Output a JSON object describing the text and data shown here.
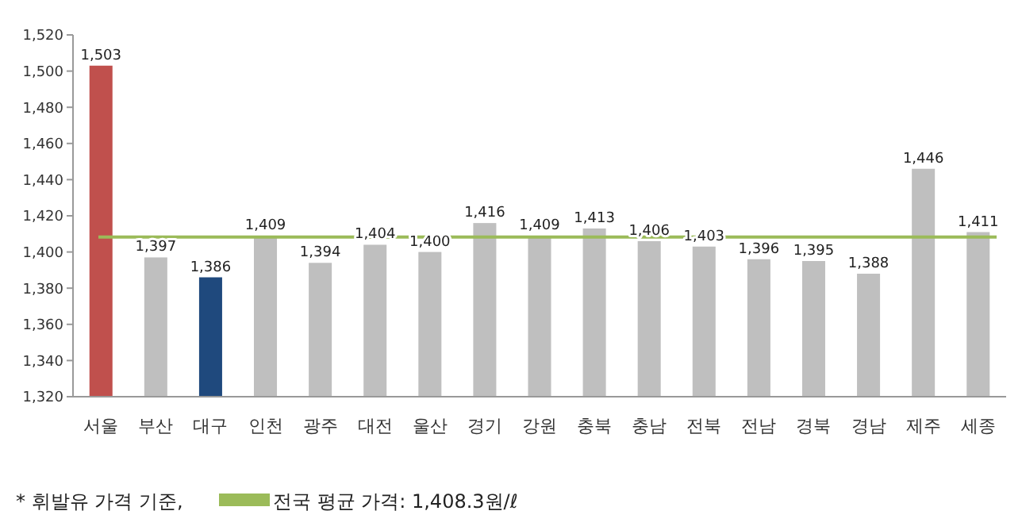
{
  "chart_data": {
    "type": "bar",
    "categories": [
      "서울",
      "부산",
      "대구",
      "인천",
      "광주",
      "대전",
      "울산",
      "경기",
      "강원",
      "충북",
      "충남",
      "전북",
      "전남",
      "경북",
      "경남",
      "제주",
      "세종"
    ],
    "values": [
      1503,
      1397,
      1386,
      1409,
      1394,
      1404,
      1400,
      1416,
      1409,
      1413,
      1406,
      1403,
      1396,
      1395,
      1388,
      1446,
      1411
    ],
    "colors": [
      "#c0504d",
      "#bfbfbf",
      "#1f497d",
      "#bfbfbf",
      "#bfbfbf",
      "#bfbfbf",
      "#bfbfbf",
      "#bfbfbf",
      "#bfbfbf",
      "#bfbfbf",
      "#bfbfbf",
      "#bfbfbf",
      "#bfbfbf",
      "#bfbfbf",
      "#bfbfbf",
      "#bfbfbf",
      "#bfbfbf"
    ],
    "ylim": [
      1320,
      1520
    ],
    "yticks": [
      {
        "value": 1320,
        "label": "1,320"
      },
      {
        "value": 1340,
        "label": "1,340"
      },
      {
        "value": 1360,
        "label": "1,360"
      },
      {
        "value": 1380,
        "label": "1,380"
      },
      {
        "value": 1400,
        "label": "1,400"
      },
      {
        "value": 1420,
        "label": "1,420"
      },
      {
        "value": 1440,
        "label": "1,440"
      },
      {
        "value": 1460,
        "label": "1,460"
      },
      {
        "value": 1480,
        "label": "1,480"
      },
      {
        "value": 1500,
        "label": "1,500"
      },
      {
        "value": 1520,
        "label": "1,520"
      }
    ],
    "value_labels": [
      "1,503",
      "1,397",
      "1,386",
      "1,409",
      "1,394",
      "1,404",
      "1,400",
      "1,416",
      "1,409",
      "1,413",
      "1,406",
      "1,403",
      "1,396",
      "1,395",
      "1,388",
      "1,446",
      "1,411"
    ],
    "ref_lines": [
      {
        "axis": "y",
        "value": 1408.3,
        "label": "전국 평균 가격: 1,408.3원/ℓ",
        "color": "#9bbb59"
      }
    ],
    "annotations": [
      "* 휘발유 가격 기준,"
    ]
  }
}
